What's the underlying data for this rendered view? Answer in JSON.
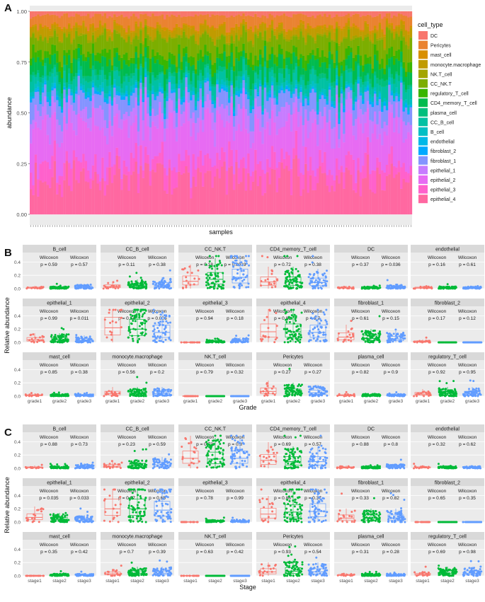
{
  "panel_labels": [
    "A",
    "B",
    "C"
  ],
  "chart_data": [
    {
      "type": "bar",
      "subtype": "stacked-100",
      "panel": "A",
      "xlabel": "samples",
      "ylabel": "abundance",
      "ylim": [
        0,
        1
      ],
      "y_ticks": [
        "0.00",
        "0.25",
        "0.50",
        "0.75",
        "1.00"
      ],
      "legend_title": "cell_type",
      "legend_position": "right",
      "n_samples": 160,
      "series": [
        {
          "name": "DC",
          "color": "#F8766D",
          "mean_fraction": 0.02
        },
        {
          "name": "Pericytes",
          "color": "#EA8331",
          "mean_fraction": 0.05
        },
        {
          "name": "mast_cell",
          "color": "#D89000",
          "mean_fraction": 0.01
        },
        {
          "name": "monocyte.macrophage",
          "color": "#C09B00",
          "mean_fraction": 0.04
        },
        {
          "name": "NK.T_cell",
          "color": "#A3A500",
          "mean_fraction": 0.01
        },
        {
          "name": "CC_NK.T",
          "color": "#7CAE00",
          "mean_fraction": 0.08
        },
        {
          "name": "regulatory_T_cell",
          "color": "#39B600",
          "mean_fraction": 0.04
        },
        {
          "name": "CD4_memory_T_cell",
          "color": "#00BB4E",
          "mean_fraction": 0.06
        },
        {
          "name": "plasma_cell",
          "color": "#00BF7D",
          "mean_fraction": 0.02
        },
        {
          "name": "CC_B_cell",
          "color": "#00C1A3",
          "mean_fraction": 0.05
        },
        {
          "name": "B_cell",
          "color": "#00BFC4",
          "mean_fraction": 0.02
        },
        {
          "name": "endothelial",
          "color": "#00B8E7",
          "mean_fraction": 0.01
        },
        {
          "name": "fibroblast_2",
          "color": "#00A9FF",
          "mean_fraction": 0.01
        },
        {
          "name": "fibroblast_1",
          "color": "#8494FF",
          "mean_fraction": 0.07
        },
        {
          "name": "epithelial_1",
          "color": "#C77CFF",
          "mean_fraction": 0.07
        },
        {
          "name": "epithelial_2",
          "color": "#E76BF3",
          "mean_fraction": 0.18
        },
        {
          "name": "epithelial_3",
          "color": "#FF61CC",
          "mean_fraction": 0.08
        },
        {
          "name": "epithelial_4",
          "color": "#FF68A1",
          "mean_fraction": 0.18
        }
      ]
    },
    {
      "type": "scatter",
      "subtype": "faceted-boxplot-jitter",
      "panel": "B",
      "xlabel": "Grade",
      "ylabel": "Relative abundance",
      "groups": [
        "grade1",
        "grade2",
        "grade3"
      ],
      "group_colors": [
        "#F8766D",
        "#00BA38",
        "#619CFF"
      ],
      "ylim": [
        0,
        0.5
      ],
      "y_ticks": [
        "0.0",
        "0.2",
        "0.4"
      ],
      "test_label": "Wilcoxon",
      "facets": [
        {
          "name": "B_cell",
          "p1": "p = 0.59",
          "p2": "p = 0.57",
          "medians": [
            0.01,
            0.01,
            0.02
          ]
        },
        {
          "name": "CC_B_cell",
          "p1": "p = 0.11",
          "p2": "p = 0.38",
          "medians": [
            0.03,
            0.04,
            0.05
          ]
        },
        {
          "name": "CC_NK.T",
          "p1": "p = 0.18",
          "p2": "p = 0.0019",
          "medians": [
            0.11,
            0.14,
            0.17
          ]
        },
        {
          "name": "CD4_memory_T_cell",
          "p1": "p = 0.72",
          "p2": "p = 0.38",
          "medians": [
            0.1,
            0.1,
            0.09
          ]
        },
        {
          "name": "DC",
          "p1": "p = 0.37",
          "p2": "p = 0.036",
          "medians": [
            0.01,
            0.01,
            0.02
          ]
        },
        {
          "name": "endothelial",
          "p1": "p = 0.16",
          "p2": "p = 0.61",
          "medians": [
            0.01,
            0.01,
            0.01
          ]
        },
        {
          "name": "epithelial_1",
          "p1": "p = 0.99",
          "p2": "p = 0.011",
          "medians": [
            0.04,
            0.04,
            0.03
          ]
        },
        {
          "name": "epithelial_2",
          "p1": "p = 0.54",
          "p2": "p = 0.006",
          "medians": [
            0.22,
            0.2,
            0.15
          ]
        },
        {
          "name": "epithelial_3",
          "p1": "p = 0.94",
          "p2": "p = 0.18",
          "medians": [
            0.0,
            0.01,
            0.02
          ]
        },
        {
          "name": "epithelial_4",
          "p1": "p = 0.81",
          "p2": "p = 0.7",
          "medians": [
            0.16,
            0.16,
            0.15
          ]
        },
        {
          "name": "fibroblast_1",
          "p1": "p = 0.61",
          "p2": "p = 0.15",
          "medians": [
            0.08,
            0.06,
            0.05
          ]
        },
        {
          "name": "fibroblast_2",
          "p1": "p = 0.17",
          "p2": "p = 0.12",
          "medians": [
            0.01,
            0.0,
            0.0
          ]
        },
        {
          "name": "mast_cell",
          "p1": "p = 0.85",
          "p2": "p = 0.38",
          "medians": [
            0.01,
            0.01,
            0.01
          ]
        },
        {
          "name": "monocyte.macrophage",
          "p1": "p = 0.56",
          "p2": "p = 0.2",
          "medians": [
            0.04,
            0.04,
            0.04
          ]
        },
        {
          "name": "NK.T_cell",
          "p1": "p = 0.79",
          "p2": "p = 0.32",
          "medians": [
            0.0,
            0.0,
            0.0
          ]
        },
        {
          "name": "Pericytes",
          "p1": "p = 0.27",
          "p2": "p = 0.27",
          "medians": [
            0.07,
            0.06,
            0.05
          ]
        },
        {
          "name": "plasma_cell",
          "p1": "p = 0.82",
          "p2": "p = 0.9",
          "medians": [
            0.01,
            0.01,
            0.01
          ]
        },
        {
          "name": "regulatory_T_cell",
          "p1": "p = 0.92",
          "p2": "p = 0.95",
          "medians": [
            0.03,
            0.04,
            0.04
          ]
        }
      ]
    },
    {
      "type": "scatter",
      "subtype": "faceted-boxplot-jitter",
      "panel": "C",
      "xlabel": "Stage",
      "ylabel": "Relative abundance",
      "groups": [
        "stage1",
        "stage2",
        "stage3"
      ],
      "group_colors": [
        "#F8766D",
        "#00BA38",
        "#619CFF"
      ],
      "ylim": [
        0,
        0.5
      ],
      "y_ticks": [
        "0.0",
        "0.2",
        "0.4"
      ],
      "test_label": "Wilcoxon",
      "facets": [
        {
          "name": "B_cell",
          "p1": "p = 0.88",
          "p2": "p = 0.73",
          "medians": [
            0.01,
            0.01,
            0.02
          ]
        },
        {
          "name": "CC_B_cell",
          "p1": "p = 0.23",
          "p2": "p = 0.59",
          "medians": [
            0.03,
            0.04,
            0.05
          ]
        },
        {
          "name": "CC_NK.T",
          "p1": "p = 0.73",
          "p2": "p = 0.8",
          "medians": [
            0.15,
            0.14,
            0.15
          ]
        },
        {
          "name": "CD4_memory_T_cell",
          "p1": "p = 0.69",
          "p2": "p = 0.57",
          "medians": [
            0.12,
            0.1,
            0.1
          ]
        },
        {
          "name": "DC",
          "p1": "p = 0.88",
          "p2": "p = 0.8",
          "medians": [
            0.01,
            0.01,
            0.02
          ]
        },
        {
          "name": "endothelial",
          "p1": "p = 0.32",
          "p2": "p = 0.62",
          "medians": [
            0.01,
            0.01,
            0.01
          ]
        },
        {
          "name": "epithelial_1",
          "p1": "p = 0.035",
          "p2": "p = 0.033",
          "medians": [
            0.07,
            0.04,
            0.03
          ]
        },
        {
          "name": "epithelial_2",
          "p1": "p = 0.97",
          "p2": "p = 0.65",
          "medians": [
            0.2,
            0.2,
            0.18
          ]
        },
        {
          "name": "epithelial_3",
          "p1": "p = 0.78",
          "p2": "p = 0.99",
          "medians": [
            0.0,
            0.01,
            0.01
          ]
        },
        {
          "name": "epithelial_4",
          "p1": "p = 0.86",
          "p2": "p = 0.37",
          "medians": [
            0.12,
            0.15,
            0.16
          ]
        },
        {
          "name": "fibroblast_1",
          "p1": "p = 0.33",
          "p2": "p = 0.82",
          "medians": [
            0.06,
            0.06,
            0.06
          ]
        },
        {
          "name": "fibroblast_2",
          "p1": "p = 0.65",
          "p2": "p = 0.35",
          "medians": [
            0.0,
            0.0,
            0.0
          ]
        },
        {
          "name": "mast_cell",
          "p1": "p = 0.35",
          "p2": "p = 0.42",
          "medians": [
            0.0,
            0.01,
            0.01
          ]
        },
        {
          "name": "monocyte.macrophage",
          "p1": "p = 0.7",
          "p2": "p = 0.39",
          "medians": [
            0.03,
            0.04,
            0.04
          ]
        },
        {
          "name": "NK.T_cell",
          "p1": "p = 0.63",
          "p2": "p = 0.42",
          "medians": [
            0.0,
            0.0,
            0.0
          ]
        },
        {
          "name": "Pericytes",
          "p1": "p = 0.93",
          "p2": "p = 0.54",
          "medians": [
            0.06,
            0.07,
            0.06
          ]
        },
        {
          "name": "plasma_cell",
          "p1": "p = 0.31",
          "p2": "p = 0.28",
          "medians": [
            0.01,
            0.01,
            0.01
          ]
        },
        {
          "name": "regulatory_T_cell",
          "p1": "p = 0.69",
          "p2": "p = 0.98",
          "medians": [
            0.02,
            0.04,
            0.04
          ]
        }
      ]
    }
  ]
}
